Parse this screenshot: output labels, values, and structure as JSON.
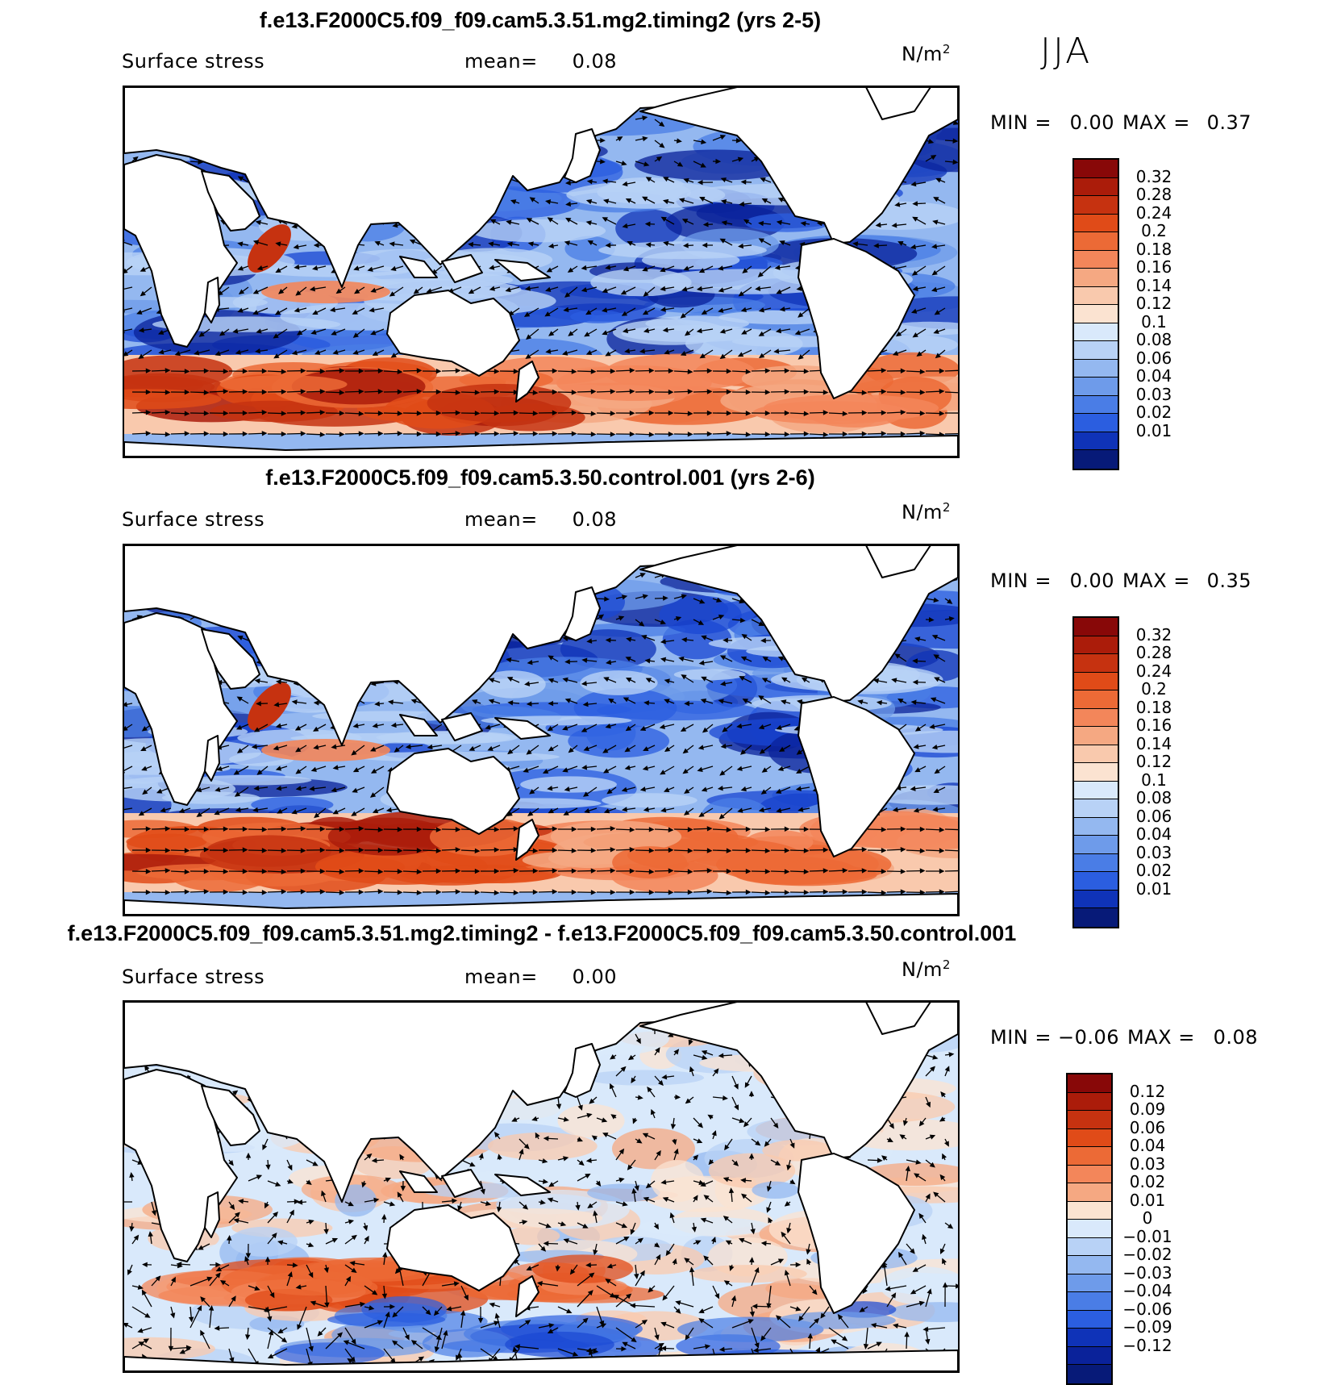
{
  "season": "JJA",
  "colors": {
    "positive": [
      "#fbe3d1",
      "#f9c9ad",
      "#f5a882",
      "#f3865a",
      "#ec6a36",
      "#e04b18",
      "#c63210",
      "#ab1c0a",
      "#880808"
    ],
    "negative": [
      "#d9e9fb",
      "#b8d2f6",
      "#94b8f0",
      "#6e9bea",
      "#4a7de6",
      "#2b5ee0",
      "#1a47d3",
      "#0f33b8",
      "#0a229a",
      "#071a78"
    ],
    "land": "#ffffff",
    "coast": "#000000",
    "arrow": "#000000"
  },
  "panels": [
    {
      "title": "f.e13.F2000C5.f09_f09.cam5.3.51.mg2.timing2 (yrs 2-5)",
      "variable": "Surface stress",
      "mean_label": "mean=",
      "mean_value": "0.08",
      "units": "N/m",
      "units_sup": "2",
      "min_label": "MIN =",
      "min_value": "0.00",
      "max_label": "MAX =",
      "max_value": "0.37",
      "kind": "abs",
      "colorbar": {
        "labels": [
          "0.32",
          "0.28",
          "0.24",
          "0.2",
          "0.18",
          "0.16",
          "0.14",
          "0.12",
          "0.1",
          "0.08",
          "0.06",
          "0.04",
          "0.03",
          "0.02",
          "0.01"
        ],
        "colors": [
          "#880808",
          "#ab1c0a",
          "#c63210",
          "#e04b18",
          "#ec6a36",
          "#f3865a",
          "#f5a882",
          "#f9c9ad",
          "#fbe3d1",
          "#d9e9fb",
          "#b8d2f6",
          "#94b8f0",
          "#6e9bea",
          "#4a7de6",
          "#2b5ee0",
          "#0f33b8",
          "#071a78"
        ]
      }
    },
    {
      "title": "f.e13.F2000C5.f09_f09.cam5.3.50.control.001 (yrs 2-6)",
      "variable": "Surface stress",
      "mean_label": "mean=",
      "mean_value": "0.08",
      "units": "N/m",
      "units_sup": "2",
      "min_label": "MIN =",
      "min_value": "0.00",
      "max_label": "MAX =",
      "max_value": "0.35",
      "kind": "abs",
      "colorbar": {
        "labels": [
          "0.32",
          "0.28",
          "0.24",
          "0.2",
          "0.18",
          "0.16",
          "0.14",
          "0.12",
          "0.1",
          "0.08",
          "0.06",
          "0.04",
          "0.03",
          "0.02",
          "0.01"
        ],
        "colors": [
          "#880808",
          "#ab1c0a",
          "#c63210",
          "#e04b18",
          "#ec6a36",
          "#f3865a",
          "#f5a882",
          "#f9c9ad",
          "#fbe3d1",
          "#d9e9fb",
          "#b8d2f6",
          "#94b8f0",
          "#6e9bea",
          "#4a7de6",
          "#2b5ee0",
          "#0f33b8",
          "#071a78"
        ]
      }
    },
    {
      "title": "f.e13.F2000C5.f09_f09.cam5.3.51.mg2.timing2 - f.e13.F2000C5.f09_f09.cam5.3.50.control.001",
      "variable": "Surface stress",
      "mean_label": "mean=",
      "mean_value": "0.00",
      "units": "N/m",
      "units_sup": "2",
      "min_label": "MIN =",
      "min_value": "−0.06",
      "max_label": "MAX =",
      "max_value": "0.08",
      "kind": "diff",
      "colorbar": {
        "labels": [
          "0.12",
          "0.09",
          "0.06",
          "0.04",
          "0.03",
          "0.02",
          "0.01",
          "0",
          "−0.01",
          "−0.02",
          "−0.03",
          "−0.04",
          "−0.06",
          "−0.09",
          "−0.12"
        ],
        "colors": [
          "#880808",
          "#ab1c0a",
          "#c63210",
          "#e04b18",
          "#ec6a36",
          "#f3865a",
          "#f5a882",
          "#fbe3d1",
          "#d9e9fb",
          "#b8d2f6",
          "#94b8f0",
          "#6e9bea",
          "#4a7de6",
          "#2b5ee0",
          "#0f33b8",
          "#0a229a",
          "#071a78"
        ]
      }
    }
  ]
}
